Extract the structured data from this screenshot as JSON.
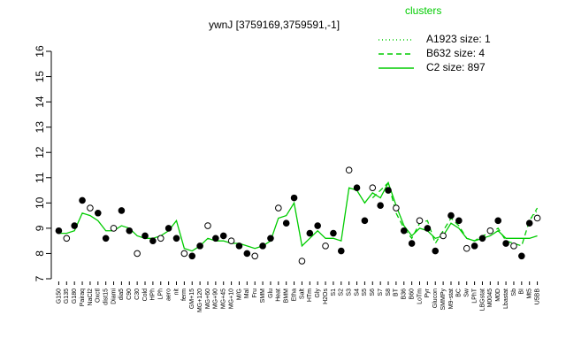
{
  "chart_data": {
    "type": "line",
    "title": "ywnJ [3759169,3759591,-1]",
    "legend_title": "clusters",
    "legend_color": "#00cc00",
    "categories": [
      "G150",
      "G135",
      "G180",
      "Pairaq",
      "NaCl2",
      "Oxctl",
      "dist15",
      "Diami",
      "dia5",
      "C90",
      "C30",
      "Cold",
      "HPh",
      "LPh",
      "aero",
      "nit",
      "ferm",
      "GM+15",
      "MG+120",
      "MG+60",
      "MG+90",
      "MG+45",
      "MG+10",
      "M/G",
      "Mal",
      "Fru",
      "SMM",
      "Glu",
      "Heat",
      "BMM",
      "Etha",
      "Salt",
      "HTm",
      "Gly",
      "H2Os",
      "S1",
      "S2",
      "S3",
      "S4",
      "S5",
      "S6",
      "S7",
      "S8",
      "BT",
      "B36",
      "B60",
      "LoTm",
      "Pyr",
      "Glucon",
      "SMMPy",
      "M9-stat",
      "BC",
      "Sw",
      "LPhT",
      "LBGstat",
      "M0045",
      "M0D",
      "Lbastat",
      "Sb",
      "BI",
      "Mt5",
      "U5BB"
    ],
    "points": {
      "color": "#000000",
      "values": [
        8.9,
        8.6,
        9.1,
        10.1,
        9.8,
        9.6,
        8.6,
        9.0,
        9.7,
        8.9,
        8.0,
        8.7,
        8.5,
        8.6,
        9.0,
        8.6,
        8.0,
        7.9,
        8.3,
        9.1,
        8.6,
        8.7,
        8.5,
        8.3,
        8.0,
        7.9,
        8.3,
        8.6,
        9.8,
        9.2,
        10.2,
        7.7,
        8.8,
        9.1,
        8.3,
        8.8,
        8.1,
        11.3,
        10.6,
        9.3,
        10.6,
        9.9,
        10.5,
        9.8,
        8.9,
        8.4,
        9.3,
        9.0,
        8.1,
        8.7,
        9.5,
        9.3,
        8.2,
        8.3,
        8.6,
        8.9,
        9.3,
        8.4,
        8.3,
        7.9,
        9.2,
        9.4
      ]
    },
    "series": [
      {
        "name": "A1923 size: 1",
        "color": "#00cc00",
        "linestyle": "dotted",
        "values": [
          null,
          null,
          null,
          null,
          null,
          null,
          null,
          null,
          null,
          null,
          null,
          null,
          null,
          null,
          null,
          null,
          null,
          null,
          null,
          null,
          null,
          null,
          null,
          null,
          null,
          null,
          null,
          null,
          null,
          null,
          null,
          null,
          null,
          null,
          null,
          null,
          null,
          null,
          null,
          null,
          null,
          null,
          null,
          null,
          null,
          null,
          null,
          null,
          null,
          null,
          null,
          null,
          null,
          null,
          null,
          null,
          null,
          null,
          null,
          null,
          9.3,
          9.7
        ]
      },
      {
        "name": "B632 size: 4",
        "color": "#00cc00",
        "linestyle": "dashed",
        "values": [
          null,
          null,
          null,
          null,
          null,
          null,
          null,
          null,
          null,
          null,
          null,
          null,
          null,
          null,
          null,
          null,
          null,
          null,
          null,
          null,
          null,
          null,
          null,
          null,
          null,
          null,
          null,
          null,
          null,
          null,
          null,
          null,
          null,
          null,
          null,
          null,
          null,
          null,
          null,
          null,
          10.2,
          10.5,
          10.8,
          9.6,
          9.0,
          8.6,
          9.2,
          9.3,
          8.4,
          8.9,
          9.4,
          9.1,
          8.6,
          8.5,
          8.7,
          8.8,
          9.0,
          8.5,
          8.4,
          8.3,
          9.3,
          9.8
        ]
      },
      {
        "name": "C2 size: 897",
        "color": "#00cc00",
        "linestyle": "solid",
        "values": [
          8.8,
          8.8,
          8.9,
          9.6,
          9.5,
          9.3,
          8.9,
          8.9,
          9.1,
          9.0,
          8.7,
          8.6,
          8.6,
          8.7,
          8.9,
          9.3,
          8.2,
          8.1,
          8.3,
          8.6,
          8.5,
          8.5,
          8.4,
          8.4,
          8.3,
          8.2,
          8.3,
          8.5,
          9.4,
          9.5,
          10.0,
          8.3,
          8.6,
          8.9,
          8.6,
          8.6,
          8.5,
          10.6,
          10.5,
          10.0,
          10.4,
          10.2,
          10.8,
          9.9,
          9.1,
          8.7,
          9.0,
          8.9,
          8.6,
          8.7,
          9.2,
          9.0,
          8.6,
          8.5,
          8.6,
          8.7,
          8.9,
          8.6,
          8.6,
          8.6,
          8.6,
          8.7
        ]
      }
    ],
    "ylim": [
      7,
      16
    ],
    "yticks": [
      7,
      8,
      9,
      10,
      11,
      12,
      13,
      14,
      15,
      16
    ]
  }
}
